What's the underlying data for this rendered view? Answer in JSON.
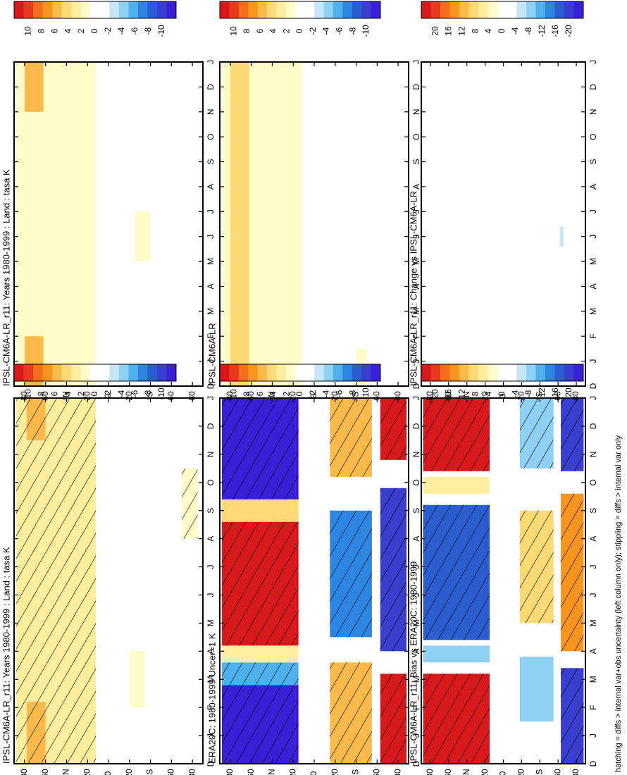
{
  "footnote": "hatching = diffs > internal var+obs uncertainty (left column only); stippling = diffs > internal var only",
  "months": [
    "D",
    "J",
    "F",
    "M",
    "A",
    "M",
    "J",
    "J",
    "A",
    "S",
    "O",
    "N",
    "D",
    "J"
  ],
  "lat_labels": [
    "80",
    "60",
    "°N",
    "20",
    "0",
    "20",
    "°S",
    "60",
    "80"
  ],
  "colorbars": {
    "row1": {
      "colors": [
        "#d7191c",
        "#e83a1e",
        "#f46d1a",
        "#f9951f",
        "#fdb94a",
        "#fed976",
        "#feee9e",
        "#fffcc8",
        "#ffffff",
        "#ffffff",
        "#c6e6f8",
        "#8fd0f5",
        "#4fb0ee",
        "#2c85e0",
        "#2a5ecf",
        "#3a3fd0",
        "#3a1fd6"
      ],
      "labels": [
        "10",
        "8",
        "6",
        "4",
        "2",
        "0",
        "-2",
        "-4",
        "-6",
        "-8",
        "-10"
      ]
    },
    "row2": {
      "colors": [
        "#d7191c",
        "#e83a1e",
        "#f46d1a",
        "#f9951f",
        "#fdb94a",
        "#fed976",
        "#feee9e",
        "#fffcc8",
        "#ffffff",
        "#ffffff",
        "#c6e6f8",
        "#8fd0f5",
        "#4fb0ee",
        "#2c85e0",
        "#2a5ecf",
        "#3a3fd0",
        "#3a1fd6"
      ],
      "labels": [
        "10",
        "8",
        "6",
        "4",
        "2",
        "0",
        "-2",
        "-4",
        "-6",
        "-8",
        "-10"
      ]
    },
    "row3": {
      "colors": [
        "#d7191c",
        "#e83a1e",
        "#f46d1a",
        "#f9951f",
        "#fdb94a",
        "#fed976",
        "#feee9e",
        "#fffcc8",
        "#ffffff",
        "#ffffff",
        "#c6e6f8",
        "#8fd0f5",
        "#4fb0ee",
        "#2c85e0",
        "#2a5ecf",
        "#3a3fd0",
        "#3a1fd6"
      ],
      "labels": [
        "20",
        "16",
        "12",
        "8",
        "4",
        "0",
        "-4",
        "-8",
        "-12",
        "-16",
        "-20"
      ]
    }
  },
  "chart_data": [
    {
      "type": "heatmap",
      "title": "IPSL-CM6A-LR_r11: Years 1980-1999 : Land : tasa K",
      "x_axis": "month (D to J)",
      "y_axis": "latitude 80N to 80S",
      "color_range": [
        -10,
        10
      ],
      "hatching": true,
      "bands": [
        {
          "lat": "80N-15N",
          "months": "all",
          "value": 2,
          "note": "higher in DJF near 70N"
        },
        {
          "lat": "15N-80S",
          "months": "all",
          "value": 0
        }
      ]
    },
    {
      "type": "heatmap",
      "title": "IPSL-CM6A-LR_r11: Years 1980-1999 : Land : tasa K",
      "x_axis": "month (D to J)",
      "y_axis": "latitude 80N to 80S",
      "color_range": [
        -10,
        10
      ],
      "hatching": false,
      "bands": [
        {
          "lat": "80N-15N",
          "months": "all",
          "value": 2,
          "note": "up to 4 near 75N in winter"
        },
        {
          "lat": "15N-80S",
          "months": "all",
          "value": 0
        }
      ]
    },
    {
      "type": "heatmap",
      "title": "ERA20C: 1980-1999 Uncer=1 K",
      "x_axis": "month (D to J)",
      "y_axis": "latitude 80N to 80S",
      "color_range": [
        -10,
        10
      ],
      "hatching": true,
      "bands": [
        {
          "lat": "80N-15N",
          "months": "D-M, N-D",
          "value": -10
        },
        {
          "lat": "80N-15N",
          "months": "M-S",
          "value": 10
        },
        {
          "lat": "20S-55S",
          "months": "D-A, O-D",
          "value": 5
        },
        {
          "lat": "20S-55S",
          "months": "M-S",
          "value": -6
        },
        {
          "lat": "65S-80S",
          "months": "D-M, N-D",
          "value": 10
        },
        {
          "lat": "65S-80S",
          "months": "A-O",
          "value": -8
        }
      ]
    },
    {
      "type": "heatmap",
      "title": "IPSL-CM6A-LR",
      "x_axis": "month (D to J)",
      "y_axis": "latitude 80N to 80S",
      "color_range": [
        -10,
        10
      ],
      "hatching": false,
      "bands": [
        {
          "lat": "80N-15N",
          "months": "all",
          "value": 2,
          "note": "up to 4 near 75N"
        },
        {
          "lat": "15N-80S",
          "months": "all",
          "value": 0
        }
      ]
    },
    {
      "type": "heatmap",
      "title": "IPSL-CM6A-LR_r11: Bias vs ERA20C: 1980-1999",
      "x_axis": "month (D to J)",
      "y_axis": "latitude 80N to 80S",
      "color_range": [
        -20,
        20
      ],
      "hatching": true,
      "bands": [
        {
          "lat": "80N-15N",
          "months": "D-M, N-D",
          "value": 18
        },
        {
          "lat": "80N-15N",
          "months": "M-S",
          "value": -14
        },
        {
          "lat": "20S-55S",
          "months": "D-A",
          "value": -8
        },
        {
          "lat": "20S-55S",
          "months": "M-S",
          "value": 8
        },
        {
          "lat": "65S-80S",
          "months": "D-M, N-D",
          "value": -16
        },
        {
          "lat": "65S-80S",
          "months": "A-O",
          "value": 12
        }
      ]
    },
    {
      "type": "heatmap",
      "title": "IPSL-CM6A-LR_r11: Change vs IPSL-CM6A-LR",
      "x_axis": "month (D to J)",
      "y_axis": "latitude 80N to 80S",
      "color_range": [
        -20,
        20
      ],
      "hatching": false,
      "bands": [
        {
          "lat": "80N-80S",
          "months": "all",
          "value": 0
        }
      ]
    }
  ]
}
